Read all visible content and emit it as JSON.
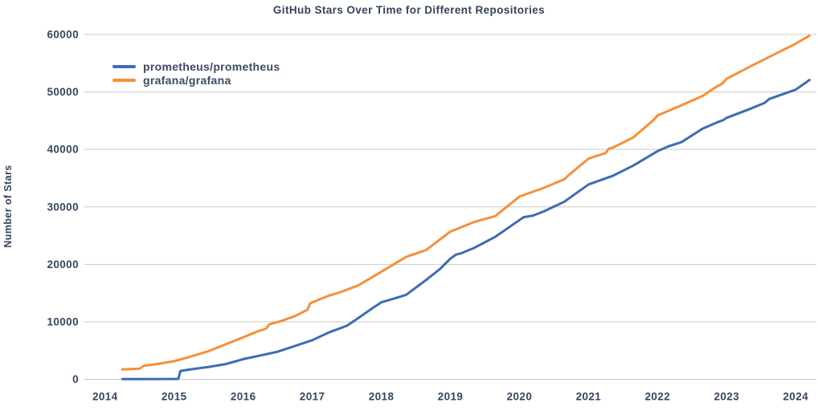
{
  "chart_data": {
    "type": "line",
    "title": "GitHub Stars Over Time for Different Repositories",
    "xlabel": "",
    "ylabel": "Number of Stars",
    "xlim": [
      2013.7,
      2024.3
    ],
    "ylim": [
      0,
      60000
    ],
    "xticks": [
      2014,
      2015,
      2016,
      2017,
      2018,
      2019,
      2020,
      2021,
      2022,
      2023,
      2024
    ],
    "yticks": [
      0,
      10000,
      20000,
      30000,
      40000,
      50000,
      60000
    ],
    "grid": "horizontal",
    "legend_position": "upper-left-inside",
    "colors": {
      "text": "#33425b",
      "tick_text": "#36465f",
      "gridline": "#c9c9c9",
      "background": "#ffffff"
    },
    "series": [
      {
        "name": "prometheus/prometheus",
        "color": "#3d6cb4",
        "points": [
          [
            2014.25,
            30
          ],
          [
            2014.6,
            45
          ],
          [
            2015.0,
            60
          ],
          [
            2015.06,
            70
          ],
          [
            2015.09,
            1450
          ],
          [
            2015.25,
            1750
          ],
          [
            2015.5,
            2150
          ],
          [
            2015.75,
            2650
          ],
          [
            2016.0,
            3500
          ],
          [
            2016.25,
            4150
          ],
          [
            2016.5,
            4800
          ],
          [
            2016.75,
            5800
          ],
          [
            2017.0,
            6800
          ],
          [
            2017.25,
            8200
          ],
          [
            2017.5,
            9300
          ],
          [
            2017.66,
            10600
          ],
          [
            2017.85,
            12200
          ],
          [
            2018.0,
            13400
          ],
          [
            2018.2,
            14100
          ],
          [
            2018.36,
            14700
          ],
          [
            2018.65,
            17300
          ],
          [
            2018.85,
            19200
          ],
          [
            2019.0,
            21000
          ],
          [
            2019.08,
            21700
          ],
          [
            2019.15,
            21900
          ],
          [
            2019.35,
            22900
          ],
          [
            2019.65,
            24800
          ],
          [
            2020.0,
            27700
          ],
          [
            2020.06,
            28200
          ],
          [
            2020.2,
            28500
          ],
          [
            2020.35,
            29200
          ],
          [
            2020.65,
            30900
          ],
          [
            2021.0,
            33900
          ],
          [
            2021.35,
            35400
          ],
          [
            2021.65,
            37200
          ],
          [
            2022.0,
            39700
          ],
          [
            2022.15,
            40500
          ],
          [
            2022.35,
            41300
          ],
          [
            2022.65,
            43600
          ],
          [
            2022.88,
            44800
          ],
          [
            2022.95,
            45100
          ],
          [
            2023.0,
            45500
          ],
          [
            2023.35,
            47100
          ],
          [
            2023.55,
            48100
          ],
          [
            2023.62,
            48800
          ],
          [
            2024.0,
            50400
          ],
          [
            2024.2,
            52100
          ]
        ]
      },
      {
        "name": "grafana/grafana",
        "color": "#f78f39",
        "points": [
          [
            2014.25,
            1700
          ],
          [
            2014.5,
            1850
          ],
          [
            2014.56,
            2350
          ],
          [
            2014.75,
            2650
          ],
          [
            2015.0,
            3150
          ],
          [
            2015.25,
            4000
          ],
          [
            2015.5,
            4900
          ],
          [
            2015.75,
            6100
          ],
          [
            2016.0,
            7300
          ],
          [
            2016.2,
            8300
          ],
          [
            2016.33,
            8800
          ],
          [
            2016.38,
            9600
          ],
          [
            2016.5,
            9950
          ],
          [
            2016.75,
            11000
          ],
          [
            2016.93,
            12100
          ],
          [
            2016.97,
            13200
          ],
          [
            2017.0,
            13400
          ],
          [
            2017.25,
            14600
          ],
          [
            2017.37,
            15000
          ],
          [
            2017.66,
            16300
          ],
          [
            2018.0,
            18700
          ],
          [
            2018.36,
            21300
          ],
          [
            2018.65,
            22500
          ],
          [
            2019.0,
            25700
          ],
          [
            2019.35,
            27400
          ],
          [
            2019.65,
            28400
          ],
          [
            2020.0,
            31800
          ],
          [
            2020.35,
            33300
          ],
          [
            2020.65,
            34800
          ],
          [
            2020.72,
            35600
          ],
          [
            2021.0,
            38400
          ],
          [
            2021.25,
            39400
          ],
          [
            2021.29,
            40100
          ],
          [
            2021.35,
            40300
          ],
          [
            2021.65,
            42100
          ],
          [
            2021.95,
            45200
          ],
          [
            2022.0,
            45900
          ],
          [
            2022.35,
            47700
          ],
          [
            2022.65,
            49300
          ],
          [
            2022.85,
            50900
          ],
          [
            2022.93,
            51400
          ],
          [
            2023.0,
            52300
          ],
          [
            2023.35,
            54500
          ],
          [
            2023.7,
            56600
          ],
          [
            2024.0,
            58400
          ],
          [
            2024.2,
            59800
          ]
        ]
      }
    ]
  }
}
